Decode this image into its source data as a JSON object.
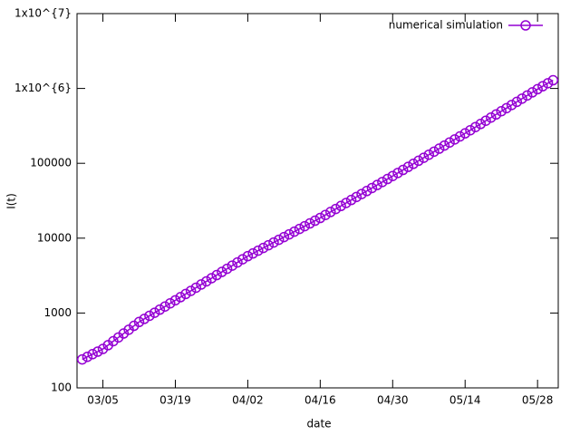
{
  "chart_data": {
    "type": "line",
    "xlabel": "date",
    "ylabel": "I(t)",
    "log_y": true,
    "legend": "top-right",
    "xlim": [
      "02/28",
      "06/01"
    ],
    "xticks": [
      "03/05",
      "03/19",
      "04/02",
      "04/16",
      "04/30",
      "05/14",
      "05/28"
    ],
    "ylim": [
      100,
      10000000
    ],
    "yticks": [
      100,
      1000,
      10000,
      100000,
      {
        "value": 1000000,
        "label": "1x10^{6}"
      },
      {
        "value": 10000000,
        "label": "1x10^{7}"
      }
    ],
    "x": [
      "03/01",
      "03/02",
      "03/03",
      "03/04",
      "03/05",
      "03/06",
      "03/07",
      "03/08",
      "03/09",
      "03/10",
      "03/11",
      "03/12",
      "03/13",
      "03/14",
      "03/15",
      "03/16",
      "03/17",
      "03/18",
      "03/19",
      "03/20",
      "03/21",
      "03/22",
      "03/23",
      "03/24",
      "03/25",
      "03/26",
      "03/27",
      "03/28",
      "03/29",
      "03/30",
      "03/31",
      "04/01",
      "04/02",
      "04/03",
      "04/04",
      "04/05",
      "04/06",
      "04/07",
      "04/08",
      "04/09",
      "04/10",
      "04/11",
      "04/12",
      "04/13",
      "04/14",
      "04/15",
      "04/16",
      "04/17",
      "04/18",
      "04/19",
      "04/20",
      "04/21",
      "04/22",
      "04/23",
      "04/24",
      "04/25",
      "04/26",
      "04/27",
      "04/28",
      "04/29",
      "04/30",
      "05/01",
      "05/02",
      "05/03",
      "05/04",
      "05/05",
      "05/06",
      "05/07",
      "05/08",
      "05/09",
      "05/10",
      "05/11",
      "05/12",
      "05/13",
      "05/14",
      "05/15",
      "05/16",
      "05/17",
      "05/18",
      "05/19",
      "05/20",
      "05/21",
      "05/22",
      "05/23",
      "05/24",
      "05/25",
      "05/26",
      "05/27",
      "05/28",
      "05/29",
      "05/30",
      "05/31"
    ],
    "series": [
      {
        "name": "numerical simulation",
        "color": "#9400d3",
        "values": [
          240,
          260,
          282,
          305,
          331,
          372,
          420,
          472,
          532,
          598,
          674,
          759,
          834,
          918,
          1009,
          1111,
          1222,
          1346,
          1479,
          1629,
          1795,
          1977,
          2178,
          2404,
          2648,
          2917,
          3214,
          3540,
          3899,
          4295,
          4742,
          5224,
          5754,
          6252,
          6808,
          7396,
          8054,
          8750,
          9506,
          10350,
          11250,
          12220,
          13300,
          14450,
          15740,
          17100,
          18620,
          20420,
          22390,
          24550,
          26920,
          29510,
          32360,
          35480,
          38900,
          42660,
          46770,
          51290,
          56230,
          61660,
          67610,
          74300,
          81500,
          89500,
          98400,
          108100,
          118600,
          130300,
          143200,
          157000,
          172600,
          189700,
          208400,
          228600,
          251200,
          276700,
          304800,
          335700,
          370700,
          408300,
          449800,
          495500,
          545800,
          601200,
          662200,
          731100,
          805400,
          887200,
          977200,
          1071500,
          1174900,
          1288200
        ]
      }
    ]
  }
}
